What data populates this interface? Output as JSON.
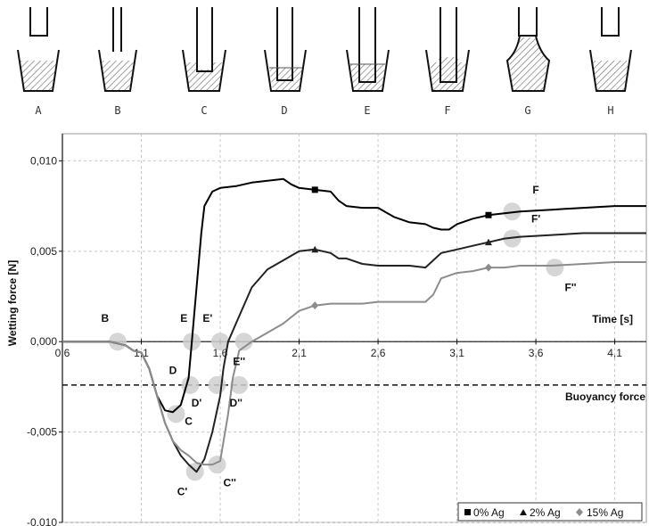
{
  "stages": [
    "A",
    "B",
    "C",
    "D",
    "E",
    "F",
    "G",
    "H"
  ],
  "chart_data": {
    "type": "line",
    "xlabel": "Time [s]",
    "ylabel": "Wetting force [N]",
    "xlim": [
      0.6,
      4.3
    ],
    "ylim": [
      -0.01,
      0.0115
    ],
    "xticks": [
      "0,6",
      "1,1",
      "1,6",
      "2,1",
      "2,6",
      "3,1",
      "3,6",
      "4,1"
    ],
    "xtick_values": [
      0.6,
      1.1,
      1.6,
      2.1,
      2.6,
      3.1,
      3.6,
      4.1
    ],
    "yticks": [
      "-0,010",
      "-0,005",
      "0,000",
      "0,005",
      "0,010"
    ],
    "ytick_values": [
      -0.01,
      -0.005,
      0.0,
      0.005,
      0.01
    ],
    "grid": "dashed",
    "reference_line": {
      "label": "Buoyancy force",
      "y": -0.0024
    },
    "legend_position": "bottom-right",
    "series": [
      {
        "name": "0% Ag",
        "color": "#000000",
        "marker": "square",
        "marker_x": [
          2.2,
          3.3
        ],
        "x": [
          0.6,
          0.9,
          1.0,
          1.05,
          1.1,
          1.15,
          1.2,
          1.25,
          1.3,
          1.35,
          1.4,
          1.42,
          1.45,
          1.48,
          1.5,
          1.55,
          1.6,
          1.7,
          1.8,
          1.9,
          2.0,
          2.05,
          2.1,
          2.2,
          2.3,
          2.35,
          2.4,
          2.5,
          2.6,
          2.7,
          2.8,
          2.9,
          2.95,
          3.0,
          3.05,
          3.1,
          3.2,
          3.3,
          3.4,
          3.5,
          3.7,
          3.9,
          4.1,
          4.3
        ],
        "y": [
          0.0,
          0.0,
          -0.0002,
          -0.0005,
          -0.0006,
          -0.0015,
          -0.003,
          -0.0038,
          -0.0039,
          -0.0035,
          -0.002,
          0.0,
          0.003,
          0.006,
          0.0075,
          0.0083,
          0.0085,
          0.0086,
          0.0088,
          0.0089,
          0.009,
          0.0087,
          0.0085,
          0.0084,
          0.0083,
          0.0078,
          0.0075,
          0.0074,
          0.0074,
          0.0069,
          0.0066,
          0.0065,
          0.0063,
          0.0062,
          0.0062,
          0.0065,
          0.0068,
          0.007,
          0.0071,
          0.0072,
          0.0073,
          0.0074,
          0.0075,
          0.0075
        ]
      },
      {
        "name": "2% Ag",
        "color": "#222222",
        "marker": "triangle",
        "marker_x": [
          2.2,
          3.3
        ],
        "x": [
          0.6,
          0.9,
          1.0,
          1.05,
          1.1,
          1.15,
          1.2,
          1.25,
          1.3,
          1.35,
          1.4,
          1.45,
          1.5,
          1.55,
          1.6,
          1.62,
          1.65,
          1.7,
          1.8,
          1.9,
          2.0,
          2.1,
          2.2,
          2.3,
          2.35,
          2.4,
          2.5,
          2.6,
          2.7,
          2.8,
          2.9,
          2.95,
          3.0,
          3.1,
          3.2,
          3.3,
          3.4,
          3.5,
          3.7,
          3.9,
          4.1,
          4.3
        ],
        "y": [
          0.0,
          0.0,
          -0.0002,
          -0.0005,
          -0.0006,
          -0.0015,
          -0.003,
          -0.0045,
          -0.0055,
          -0.0063,
          -0.0068,
          -0.0072,
          -0.0065,
          -0.005,
          -0.003,
          -0.0015,
          0.0,
          0.001,
          0.003,
          0.004,
          0.0045,
          0.005,
          0.0051,
          0.0049,
          0.0046,
          0.0046,
          0.0043,
          0.0042,
          0.0042,
          0.0042,
          0.0041,
          0.0045,
          0.0049,
          0.0051,
          0.0053,
          0.0055,
          0.0057,
          0.0058,
          0.0059,
          0.006,
          0.006,
          0.006
        ]
      },
      {
        "name": "15% Ag",
        "color": "#8c8c8c",
        "marker": "diamond",
        "marker_x": [
          2.2,
          3.3
        ],
        "x": [
          0.6,
          0.9,
          1.0,
          1.05,
          1.1,
          1.15,
          1.2,
          1.25,
          1.3,
          1.35,
          1.4,
          1.45,
          1.5,
          1.55,
          1.6,
          1.65,
          1.68,
          1.72,
          1.8,
          1.9,
          2.0,
          2.1,
          2.2,
          2.3,
          2.4,
          2.5,
          2.6,
          2.7,
          2.8,
          2.9,
          2.95,
          3.0,
          3.1,
          3.2,
          3.3,
          3.4,
          3.5,
          3.7,
          3.9,
          4.1,
          4.3
        ],
        "y": [
          0.0,
          0.0,
          -0.0002,
          -0.0005,
          -0.0006,
          -0.0015,
          -0.003,
          -0.0045,
          -0.0055,
          -0.006,
          -0.0063,
          -0.0067,
          -0.0068,
          -0.0068,
          -0.0066,
          -0.004,
          -0.002,
          -0.0005,
          0.0,
          0.0005,
          0.001,
          0.0017,
          0.002,
          0.0021,
          0.0021,
          0.0021,
          0.0022,
          0.0022,
          0.0022,
          0.0022,
          0.0026,
          0.0035,
          0.0038,
          0.0039,
          0.0041,
          0.0041,
          0.0042,
          0.0042,
          0.0043,
          0.0044,
          0.0044
        ]
      }
    ],
    "annotations": [
      {
        "label": "B",
        "x": 0.95,
        "y": 0.0,
        "lx": 0.87,
        "ly": 0.0011
      },
      {
        "label": "E",
        "x": 1.42,
        "y": 0.0,
        "lx": 1.37,
        "ly": 0.0011
      },
      {
        "label": "E'",
        "x": 1.6,
        "y": 0.0,
        "lx": 1.52,
        "ly": 0.0011
      },
      {
        "label": "E''",
        "x": 1.75,
        "y": 0.0,
        "lx": 1.72,
        "ly": -0.0013
      },
      {
        "label": "D",
        "x": 1.41,
        "y": -0.0024,
        "lx": 1.3,
        "ly": -0.0018
      },
      {
        "label": "D'",
        "x": 1.58,
        "y": -0.0024,
        "lx": 1.45,
        "ly": -0.0036
      },
      {
        "label": "D''",
        "x": 1.72,
        "y": -0.0024,
        "lx": 1.7,
        "ly": -0.0036
      },
      {
        "label": "C",
        "x": 1.32,
        "y": -0.004,
        "lx": 1.4,
        "ly": -0.0046
      },
      {
        "label": "C'",
        "x": 1.44,
        "y": -0.0072,
        "lx": 1.36,
        "ly": -0.0085
      },
      {
        "label": "C''",
        "x": 1.58,
        "y": -0.0068,
        "lx": 1.66,
        "ly": -0.008
      },
      {
        "label": "F",
        "x": 3.45,
        "y": 0.0072,
        "lx": 3.6,
        "ly": 0.0082
      },
      {
        "label": "F'",
        "x": 3.45,
        "y": 0.0057,
        "lx": 3.6,
        "ly": 0.0066
      },
      {
        "label": "F''",
        "x": 3.72,
        "y": 0.0041,
        "lx": 3.82,
        "ly": 0.0028
      }
    ]
  }
}
